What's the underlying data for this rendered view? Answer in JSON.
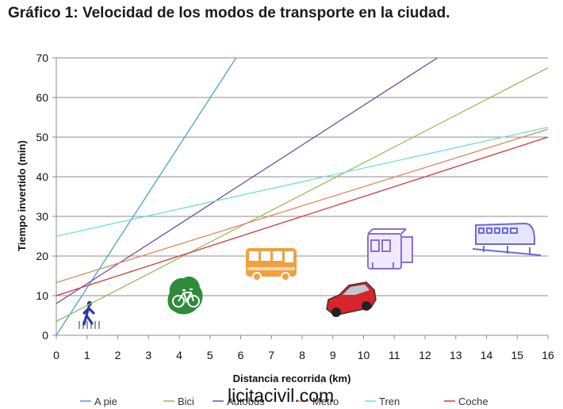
{
  "chart_data": {
    "type": "line",
    "title": "Gráfico 1: Velocidad de los modos de transporte en la ciudad.",
    "xlabel": "Distancia recorrida (km)",
    "ylabel": "Tiempo invertido (min)",
    "xlim": [
      0,
      16
    ],
    "ylim": [
      0,
      70
    ],
    "xticks": [
      "0",
      "1",
      "2",
      "3",
      "4",
      "5",
      "6",
      "7",
      "8",
      "9",
      "10",
      "11",
      "12",
      "13",
      "14",
      "15",
      "16"
    ],
    "yticks": [
      "0",
      "10",
      "20",
      "30",
      "40",
      "50",
      "60",
      "70"
    ],
    "grid": "horizontal",
    "legend_position": "bottom",
    "series": [
      {
        "name": "A pie",
        "color": "#4a9fd8",
        "x": [
          0,
          5.85
        ],
        "y": [
          0,
          70
        ]
      },
      {
        "name": "Bici",
        "color": "#9bbb59",
        "x": [
          0,
          16
        ],
        "y": [
          3.5,
          67.5
        ]
      },
      {
        "name": "Autobús",
        "color": "#6c4fa0",
        "x": [
          0,
          12.4
        ],
        "y": [
          8,
          70
        ]
      },
      {
        "name": "Metro",
        "color": "#e0895a",
        "x": [
          0,
          16
        ],
        "y": [
          13.3,
          52
        ]
      },
      {
        "name": "Tren",
        "color": "#6ee0d0",
        "x": [
          0,
          16
        ],
        "y": [
          25,
          52.5
        ]
      },
      {
        "name": "Coche",
        "color": "#d8383a",
        "x": [
          0,
          16
        ],
        "y": [
          10,
          50
        ]
      }
    ],
    "icons": [
      "walking-person-icon",
      "bicycle-icon",
      "bus-icon",
      "car-icon",
      "metro-train-icon",
      "train-icon"
    ]
  },
  "watermark": "licitacivil.com"
}
